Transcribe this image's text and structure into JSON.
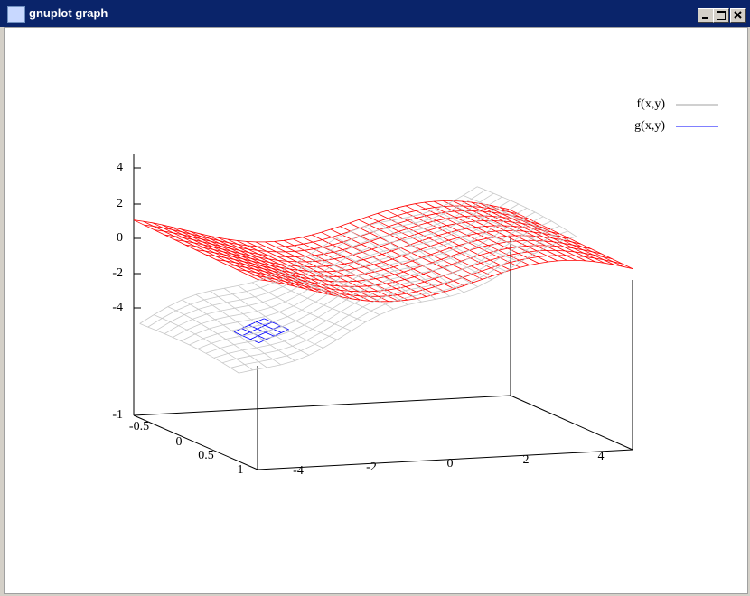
{
  "window": {
    "title": "gnuplot graph"
  },
  "plot": {
    "legend": [
      "f(x,y)",
      "g(x,y)"
    ],
    "z_ticks": [
      4,
      2,
      0,
      -2,
      -4
    ],
    "z_base_label": -1,
    "y_ticks": [
      -0.5,
      0,
      0.5,
      1
    ],
    "x_ticks": [
      -4,
      -2,
      0,
      2,
      4
    ]
  }
}
